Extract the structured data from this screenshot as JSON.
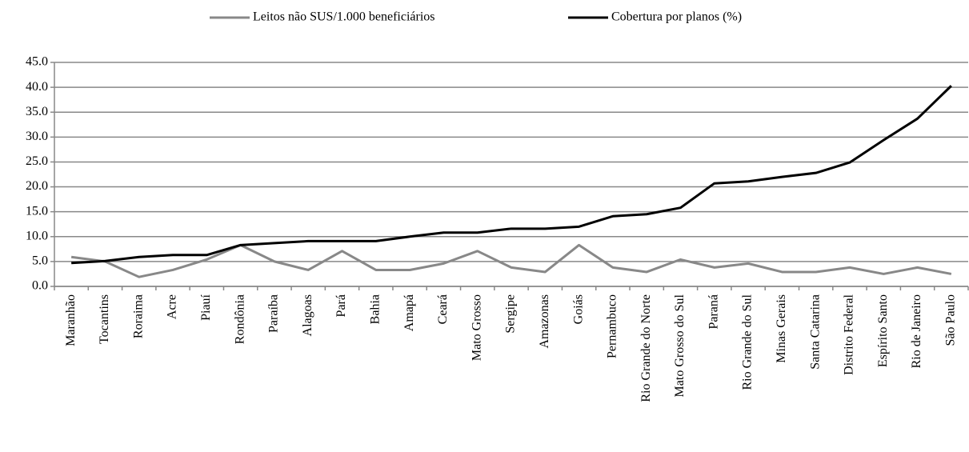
{
  "chart_data": {
    "type": "line",
    "categories": [
      "Maranhão",
      "Tocantins",
      "Roraima",
      "Acre",
      "Piauí",
      "Rondônia",
      "Paraíba",
      "Alagoas",
      "Pará",
      "Bahia",
      "Amapá",
      "Ceará",
      "Mato Grosso",
      "Sergipe",
      "Amazonas",
      "Goiás",
      "Pernambuco",
      "Rio Grande do Norte",
      "Mato Grosso do Sul",
      "Paraná",
      "Rio Grande do Sul",
      "Minas Gerais",
      "Santa Catarina",
      "Distrito Federal",
      "Espírito Santo",
      "Rio de Janeiro",
      "São Paulo"
    ],
    "series": [
      {
        "name": "Leitos não SUS/1.000 beneficiários",
        "color": "#888888",
        "values": [
          5.9,
          5.0,
          1.9,
          3.3,
          5.4,
          8.3,
          5.0,
          3.3,
          7.1,
          3.3,
          3.3,
          4.6,
          7.1,
          3.8,
          2.9,
          8.3,
          3.8,
          2.9,
          5.4,
          3.8,
          4.6,
          2.9,
          2.9,
          3.8,
          2.5,
          3.8,
          2.5
        ]
      },
      {
        "name": "Cobertura por planos (%)",
        "color": "#000000",
        "values": [
          4.7,
          5.1,
          5.9,
          6.3,
          6.3,
          8.3,
          8.7,
          9.1,
          9.1,
          9.1,
          10.0,
          10.8,
          10.8,
          11.6,
          11.6,
          12.0,
          14.1,
          14.5,
          15.8,
          20.7,
          21.1,
          22.0,
          22.8,
          24.9,
          29.4,
          33.7,
          40.3
        ]
      }
    ],
    "ylim": [
      0,
      45
    ],
    "yticks": [
      {
        "value": 0,
        "label": "0.0"
      },
      {
        "value": 5,
        "label": "5.0"
      },
      {
        "value": 10,
        "label": "10.0"
      },
      {
        "value": 15,
        "label": "15.0"
      },
      {
        "value": 20,
        "label": "20.0"
      },
      {
        "value": 25,
        "label": "25.0"
      },
      {
        "value": 30,
        "label": "30.0"
      },
      {
        "value": 35,
        "label": "35.0"
      },
      {
        "value": 40,
        "label": "40.0"
      },
      {
        "value": 45,
        "label": "45.0"
      }
    ],
    "grid": true,
    "legend": "top"
  }
}
